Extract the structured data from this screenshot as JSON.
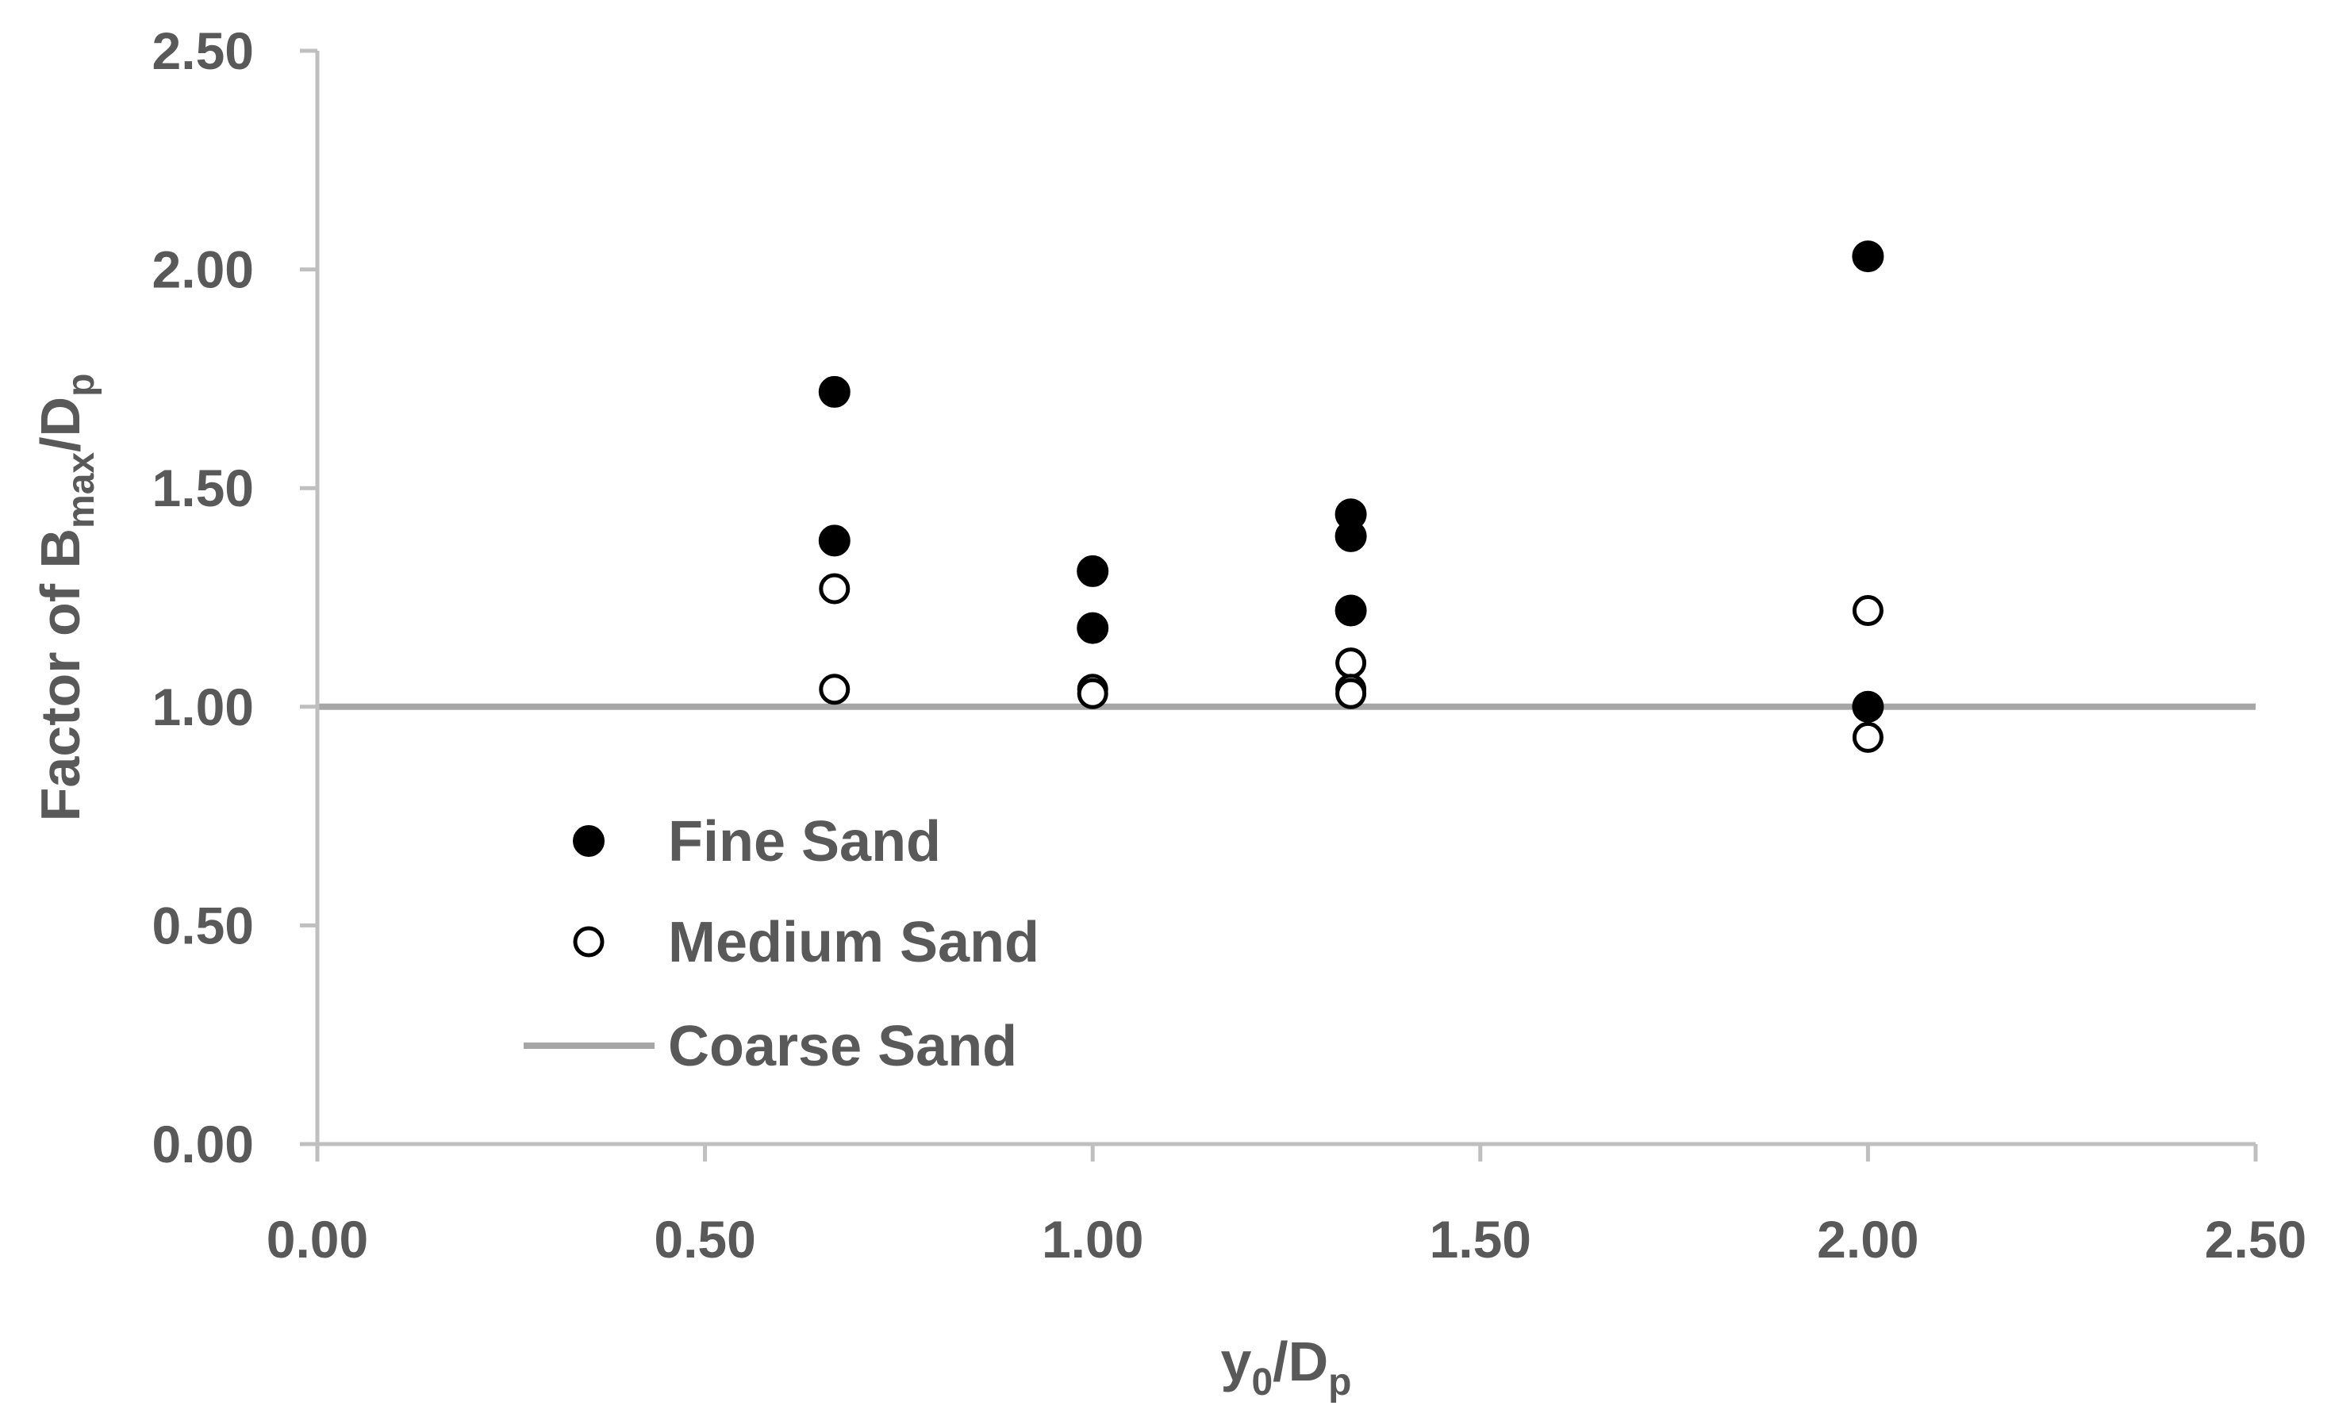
{
  "chart_data": {
    "type": "scatter",
    "title": "",
    "xlabel": {
      "main": "y",
      "sub1": "0",
      "mid": "/D",
      "sub2": "p"
    },
    "ylabel": {
      "pre": "Factor of B",
      "sub1": "max",
      "mid": "/D",
      "sub2": "p"
    },
    "xlim": [
      0,
      2.5
    ],
    "ylim": [
      0,
      2.5
    ],
    "xticks": [
      "0.00",
      "0.50",
      "1.00",
      "1.50",
      "2.00",
      "2.50"
    ],
    "yticks": [
      "0.00",
      "0.50",
      "1.00",
      "1.50",
      "2.00",
      "2.50"
    ],
    "grid": false,
    "legend_position": "lower-left",
    "series": [
      {
        "name": "Fine Sand",
        "marker": "filled-circle",
        "color": "#000000",
        "points": [
          [
            0.667,
            1.72
          ],
          [
            0.667,
            1.38
          ],
          [
            1.0,
            1.31
          ],
          [
            1.0,
            1.18
          ],
          [
            1.333,
            1.44
          ],
          [
            1.333,
            1.39
          ],
          [
            1.333,
            1.22
          ],
          [
            2.0,
            2.03
          ],
          [
            2.0,
            1.0
          ]
        ]
      },
      {
        "name": "Medium Sand",
        "marker": "open-circle",
        "color": "#000000",
        "points": [
          [
            0.667,
            1.27
          ],
          [
            0.667,
            1.04
          ],
          [
            1.0,
            1.04
          ],
          [
            1.0,
            1.03
          ],
          [
            1.333,
            1.1
          ],
          [
            1.333,
            1.04
          ],
          [
            1.333,
            1.03
          ],
          [
            2.0,
            1.22
          ],
          [
            2.0,
            0.93
          ]
        ]
      },
      {
        "name": "Coarse Sand",
        "marker": "line",
        "color": "#a6a6a6",
        "y_constant": 1.0
      }
    ],
    "colors": {
      "axis": "#bfbfbf",
      "text": "#595959",
      "reference_line": "#a6a6a6"
    }
  }
}
